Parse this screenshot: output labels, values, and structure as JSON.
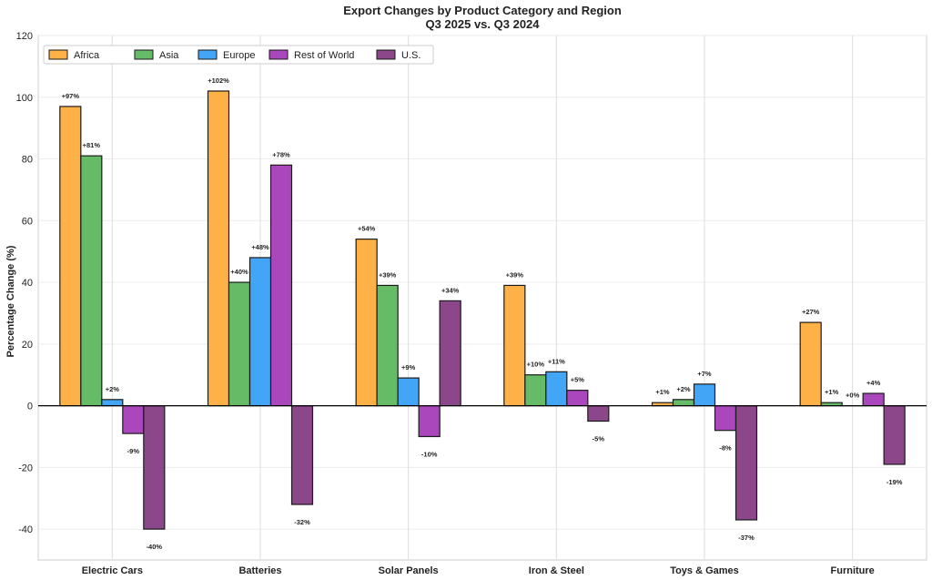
{
  "chart_data": {
    "type": "bar",
    "title": "Export Changes by Product Category and Region",
    "subtitle": "Q3 2025 vs. Q3 2024",
    "xlabel": "",
    "ylabel": "Percentage Change (%)",
    "ylim": [
      -50,
      120
    ],
    "yticks": [
      -40,
      -20,
      0,
      20,
      40,
      60,
      80,
      100,
      120
    ],
    "grid": true,
    "legend_position": "top-left",
    "categories": [
      "Electric Cars",
      "Batteries",
      "Solar Panels",
      "Iron & Steel",
      "Toys & Games",
      "Furniture"
    ],
    "series": [
      {
        "name": "Africa",
        "color": "#FDB147",
        "values": [
          97,
          102,
          54,
          39,
          1,
          27
        ]
      },
      {
        "name": "Asia",
        "color": "#66BB66",
        "values": [
          81,
          40,
          39,
          10,
          2,
          1
        ]
      },
      {
        "name": "Europe",
        "color": "#42A5F5",
        "values": [
          2,
          48,
          9,
          11,
          7,
          0
        ]
      },
      {
        "name": "Rest of World",
        "color": "#AB47BC",
        "values": [
          -9,
          78,
          -10,
          5,
          -8,
          4
        ]
      },
      {
        "name": "U.S.",
        "color": "#8B4789",
        "values": [
          -40,
          -32,
          34,
          -5,
          -37,
          -19
        ]
      }
    ],
    "data_labels": [
      [
        "+97%",
        "+81%",
        "+2%",
        "-9%",
        "-40%"
      ],
      [
        "+102%",
        "+40%",
        "+48%",
        "+78%",
        "-32%"
      ],
      [
        "+54%",
        "+39%",
        "+9%",
        "-10%",
        "+34%"
      ],
      [
        "+39%",
        "+10%",
        "+11%",
        "+5%",
        "-5%"
      ],
      [
        "+1%",
        "+2%",
        "+7%",
        "-8%",
        "-37%"
      ],
      [
        "+27%",
        "+1%",
        "+0%",
        "+4%",
        "-19%"
      ]
    ]
  }
}
